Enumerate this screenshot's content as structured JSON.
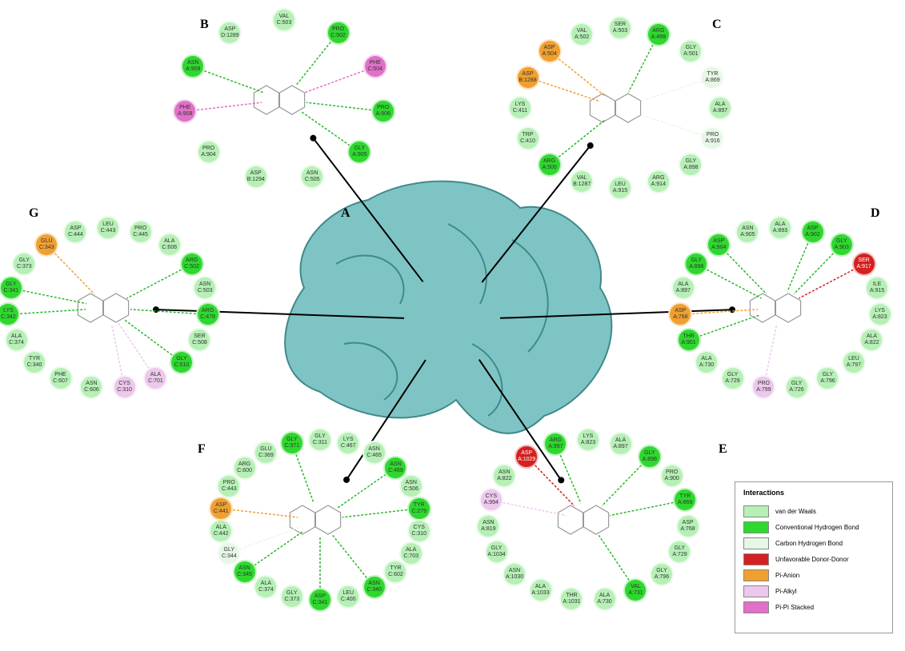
{
  "center_label": "A",
  "panels": [
    {
      "label": "B",
      "residues": [
        {
          "name": "VAL C:503",
          "color": "#b6f0b6"
        },
        {
          "name": "PRO C:502",
          "color": "#2ed82e"
        },
        {
          "name": "PHE C:504",
          "color": "#e070c8"
        },
        {
          "name": "PRO A:906",
          "color": "#2ed82e"
        },
        {
          "name": "GLY A:905",
          "color": "#2ed82e"
        },
        {
          "name": "ASN C:505",
          "color": "#b6f0b6"
        },
        {
          "name": "ASP B:1294",
          "color": "#b6f0b6"
        },
        {
          "name": "PRO A:904",
          "color": "#b6f0b6"
        },
        {
          "name": "PHE A:908",
          "color": "#e070c8"
        },
        {
          "name": "ASN A:909",
          "color": "#2ed82e"
        },
        {
          "name": "ASP D:1289",
          "color": "#b6f0b6"
        }
      ]
    },
    {
      "label": "C",
      "residues": [
        {
          "name": "SER A:503",
          "color": "#b6f0b6"
        },
        {
          "name": "ARG A:499",
          "color": "#2ed82e"
        },
        {
          "name": "GLY A:501",
          "color": "#b6f0b6"
        },
        {
          "name": "TYR A:869",
          "color": "#e6f7e6"
        },
        {
          "name": "ALA A:897",
          "color": "#b6f0b6"
        },
        {
          "name": "PRO A:916",
          "color": "#e6f7e6"
        },
        {
          "name": "GLY A:898",
          "color": "#b6f0b6"
        },
        {
          "name": "ARG A:914",
          "color": "#b6f0b6"
        },
        {
          "name": "LEU A:915",
          "color": "#b6f0b6"
        },
        {
          "name": "VAL B:1287",
          "color": "#b6f0b6"
        },
        {
          "name": "ARG A:500",
          "color": "#2ed82e"
        },
        {
          "name": "TRP C:410",
          "color": "#b6f0b6"
        },
        {
          "name": "LYS C:411",
          "color": "#b6f0b6"
        },
        {
          "name": "ASP B:1288",
          "color": "#f0a030"
        },
        {
          "name": "ASP A:504",
          "color": "#f0a030"
        },
        {
          "name": "VAL A:502",
          "color": "#b6f0b6"
        }
      ]
    },
    {
      "label": "D",
      "residues": [
        {
          "name": "ALA A:893",
          "color": "#b6f0b6"
        },
        {
          "name": "ASP A:902",
          "color": "#2ed82e"
        },
        {
          "name": "GLY A:903",
          "color": "#2ed82e"
        },
        {
          "name": "SER A:917",
          "color": "#d42020"
        },
        {
          "name": "ILE A:915",
          "color": "#b6f0b6"
        },
        {
          "name": "LYS A:823",
          "color": "#b6f0b6"
        },
        {
          "name": "ALA A:822",
          "color": "#b6f0b6"
        },
        {
          "name": "LEU A:797",
          "color": "#b6f0b6"
        },
        {
          "name": "GLY A:796",
          "color": "#b6f0b6"
        },
        {
          "name": "GLY A:726",
          "color": "#b6f0b6"
        },
        {
          "name": "PRO A:799",
          "color": "#ecc8ec"
        },
        {
          "name": "GLY A:729",
          "color": "#b6f0b6"
        },
        {
          "name": "ALA A:730",
          "color": "#b6f0b6"
        },
        {
          "name": "THR A:901",
          "color": "#2ed82e"
        },
        {
          "name": "ASP A:768",
          "color": "#f0a030"
        },
        {
          "name": "ALA A:897",
          "color": "#b6f0b6"
        },
        {
          "name": "GLY A:896",
          "color": "#2ed82e"
        },
        {
          "name": "ASP A:904",
          "color": "#2ed82e"
        },
        {
          "name": "ASN A:905",
          "color": "#b6f0b6"
        }
      ]
    },
    {
      "label": "E",
      "residues": [
        {
          "name": "LYS A:823",
          "color": "#b6f0b6"
        },
        {
          "name": "ALA A:897",
          "color": "#b6f0b6"
        },
        {
          "name": "GLY A:898",
          "color": "#2ed82e"
        },
        {
          "name": "PRO A:900",
          "color": "#b6f0b6"
        },
        {
          "name": "TYR A:869",
          "color": "#2ed82e"
        },
        {
          "name": "ASP A:768",
          "color": "#b6f0b6"
        },
        {
          "name": "GLY A:729",
          "color": "#b6f0b6"
        },
        {
          "name": "GLY A:796",
          "color": "#b6f0b6"
        },
        {
          "name": "VAL A:731",
          "color": "#2ed82e"
        },
        {
          "name": "ALA A:730",
          "color": "#b6f0b6"
        },
        {
          "name": "THR A:1031",
          "color": "#b6f0b6"
        },
        {
          "name": "ALA A:1033",
          "color": "#b6f0b6"
        },
        {
          "name": "ASN A:1030",
          "color": "#b6f0b6"
        },
        {
          "name": "GLY A:1034",
          "color": "#b6f0b6"
        },
        {
          "name": "ASN A:819",
          "color": "#b6f0b6"
        },
        {
          "name": "CYS A:994",
          "color": "#ecc8ec"
        },
        {
          "name": "ASN A:822",
          "color": "#b6f0b6"
        },
        {
          "name": "ASP A:1029",
          "color": "#d42020"
        },
        {
          "name": "ARG A:997",
          "color": "#2ed82e"
        }
      ]
    },
    {
      "label": "F",
      "residues": [
        {
          "name": "GLY C:311",
          "color": "#b6f0b6"
        },
        {
          "name": "LYS C:467",
          "color": "#b6f0b6"
        },
        {
          "name": "ASN C:465",
          "color": "#b6f0b6"
        },
        {
          "name": "ASN C:469",
          "color": "#2ed82e"
        },
        {
          "name": "ASN C:506",
          "color": "#b6f0b6"
        },
        {
          "name": "TYR C:279",
          "color": "#2ed82e"
        },
        {
          "name": "CYS C:310",
          "color": "#b6f0b6"
        },
        {
          "name": "ALA C:703",
          "color": "#b6f0b6"
        },
        {
          "name": "TYR C:602",
          "color": "#b6f0b6"
        },
        {
          "name": "ASN C:340",
          "color": "#2ed82e"
        },
        {
          "name": "LEU C:400",
          "color": "#b6f0b6"
        },
        {
          "name": "ASP C:341",
          "color": "#2ed82e"
        },
        {
          "name": "GLY C:373",
          "color": "#b6f0b6"
        },
        {
          "name": "ALA C:374",
          "color": "#b6f0b6"
        },
        {
          "name": "ASN C:345",
          "color": "#2ed82e"
        },
        {
          "name": "GLY C:344",
          "color": "#e6f7e6"
        },
        {
          "name": "ALA C:442",
          "color": "#b6f0b6"
        },
        {
          "name": "ASP C:441",
          "color": "#f0a030"
        },
        {
          "name": "PRO C:443",
          "color": "#b6f0b6"
        },
        {
          "name": "ARG C:600",
          "color": "#b6f0b6"
        },
        {
          "name": "GLU C:369",
          "color": "#b6f0b6"
        },
        {
          "name": "GLY C:371",
          "color": "#2ed82e"
        }
      ]
    },
    {
      "label": "G",
      "residues": [
        {
          "name": "LEU C:443",
          "color": "#b6f0b6"
        },
        {
          "name": "PRO C:445",
          "color": "#b6f0b6"
        },
        {
          "name": "ALA C:606",
          "color": "#b6f0b6"
        },
        {
          "name": "ARG C:502",
          "color": "#2ed82e"
        },
        {
          "name": "ASN C:503",
          "color": "#b6f0b6"
        },
        {
          "name": "ARG C:478",
          "color": "#2ed82e"
        },
        {
          "name": "SER C:508",
          "color": "#b6f0b6"
        },
        {
          "name": "GLY C:510",
          "color": "#2ed82e"
        },
        {
          "name": "ALA C:701",
          "color": "#ecc8ec"
        },
        {
          "name": "CYS C:310",
          "color": "#ecc8ec"
        },
        {
          "name": "ASN C:606",
          "color": "#b6f0b6"
        },
        {
          "name": "PHE C:607",
          "color": "#b6f0b6"
        },
        {
          "name": "TYR C:340",
          "color": "#b6f0b6"
        },
        {
          "name": "ALA C:374",
          "color": "#b6f0b6"
        },
        {
          "name": "LYS C:342",
          "color": "#2ed82e"
        },
        {
          "name": "GLY C:341",
          "color": "#2ed82e"
        },
        {
          "name": "GLY C:373",
          "color": "#b6f0b6"
        },
        {
          "name": "GLU C:343",
          "color": "#f0a030"
        },
        {
          "name": "ASP C:444",
          "color": "#b6f0b6"
        }
      ]
    }
  ],
  "legend": {
    "title": "Interactions",
    "items": [
      {
        "name": "van der Waals",
        "color": "#b6f0b6"
      },
      {
        "name": "Conventional Hydrogen Bond",
        "color": "#2ed82e"
      },
      {
        "name": "Carbon Hydrogen Bond",
        "color": "#e6f7e6"
      },
      {
        "name": "Unfavorable Donor-Donor",
        "color": "#d42020"
      },
      {
        "name": "Pi-Anion",
        "color": "#f0a030"
      },
      {
        "name": "Pi-Alkyl",
        "color": "#ecc8ec"
      },
      {
        "name": "Pi-Pi Stacked",
        "color": "#e070c8"
      }
    ]
  }
}
